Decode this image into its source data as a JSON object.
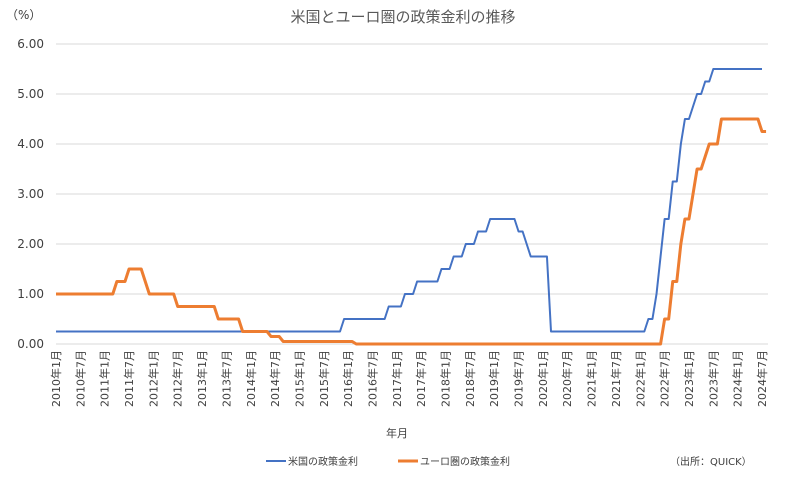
{
  "chart_data": {
    "type": "line",
    "title": "米国とユーロ圏の政策金利の推移",
    "y_unit": "（%）",
    "x_label": "年月",
    "source": "（出所：QUICK）",
    "categories": [
      "2010年1月",
      null,
      null,
      null,
      null,
      null,
      "2010年7月",
      null,
      null,
      null,
      null,
      null,
      "2011年1月",
      null,
      null,
      null,
      null,
      null,
      "2011年7月",
      null,
      null,
      null,
      null,
      null,
      "2012年1月",
      null,
      null,
      null,
      null,
      null,
      "2012年7月",
      null,
      null,
      null,
      null,
      null,
      "2013年1月",
      null,
      null,
      null,
      null,
      null,
      "2013年7月",
      null,
      null,
      null,
      null,
      null,
      "2014年1月",
      null,
      null,
      null,
      null,
      null,
      "2014年7月",
      null,
      null,
      null,
      null,
      null,
      "2015年1月",
      null,
      null,
      null,
      null,
      null,
      "2015年7月",
      null,
      null,
      null,
      null,
      null,
      "2016年1月",
      null,
      null,
      null,
      null,
      null,
      "2016年7月",
      null,
      null,
      null,
      null,
      null,
      "2017年1月",
      null,
      null,
      null,
      null,
      null,
      "2017年7月",
      null,
      null,
      null,
      null,
      null,
      "2018年1月",
      null,
      null,
      null,
      null,
      null,
      "2018年7月",
      null,
      null,
      null,
      null,
      null,
      "2019年1月",
      null,
      null,
      null,
      null,
      null,
      "2019年7月",
      null,
      null,
      null,
      null,
      null,
      "2020年1月",
      null,
      null,
      null,
      null,
      null,
      "2020年7月",
      null,
      null,
      null,
      null,
      null,
      "2021年1月",
      null,
      null,
      null,
      null,
      null,
      "2021年7月",
      null,
      null,
      null,
      null,
      null,
      "2022年1月",
      null,
      null,
      null,
      null,
      null,
      "2022年7月",
      null,
      null,
      null,
      null,
      null,
      "2023年1月",
      null,
      null,
      null,
      null,
      null,
      "2023年7月",
      null,
      null,
      null,
      null,
      null,
      "2024年1月",
      null,
      null,
      null,
      null,
      null,
      "2024年7月",
      null
    ],
    "series": [
      {
        "name": "米国の政策金利",
        "color": "#4472c4",
        "values": [
          0.25,
          0.25,
          0.25,
          0.25,
          0.25,
          0.25,
          0.25,
          0.25,
          0.25,
          0.25,
          0.25,
          0.25,
          0.25,
          0.25,
          0.25,
          0.25,
          0.25,
          0.25,
          0.25,
          0.25,
          0.25,
          0.25,
          0.25,
          0.25,
          0.25,
          0.25,
          0.25,
          0.25,
          0.25,
          0.25,
          0.25,
          0.25,
          0.25,
          0.25,
          0.25,
          0.25,
          0.25,
          0.25,
          0.25,
          0.25,
          0.25,
          0.25,
          0.25,
          0.25,
          0.25,
          0.25,
          0.25,
          0.25,
          0.25,
          0.25,
          0.25,
          0.25,
          0.25,
          0.25,
          0.25,
          0.25,
          0.25,
          0.25,
          0.25,
          0.25,
          0.25,
          0.25,
          0.25,
          0.25,
          0.25,
          0.25,
          0.25,
          0.25,
          0.25,
          0.25,
          0.25,
          0.5,
          0.5,
          0.5,
          0.5,
          0.5,
          0.5,
          0.5,
          0.5,
          0.5,
          0.5,
          0.5,
          0.75,
          0.75,
          0.75,
          0.75,
          1.0,
          1.0,
          1.0,
          1.25,
          1.25,
          1.25,
          1.25,
          1.25,
          1.25,
          1.5,
          1.5,
          1.5,
          1.75,
          1.75,
          1.75,
          2.0,
          2.0,
          2.0,
          2.25,
          2.25,
          2.25,
          2.5,
          2.5,
          2.5,
          2.5,
          2.5,
          2.5,
          2.5,
          2.25,
          2.25,
          2.0,
          1.75,
          1.75,
          1.75,
          1.75,
          1.75,
          0.25,
          0.25,
          0.25,
          0.25,
          0.25,
          0.25,
          0.25,
          0.25,
          0.25,
          0.25,
          0.25,
          0.25,
          0.25,
          0.25,
          0.25,
          0.25,
          0.25,
          0.25,
          0.25,
          0.25,
          0.25,
          0.25,
          0.25,
          0.25,
          0.5,
          0.5,
          1.0,
          1.75,
          2.5,
          2.5,
          3.25,
          3.25,
          4.0,
          4.5,
          4.5,
          4.75,
          5.0,
          5.0,
          5.25,
          5.25,
          5.5,
          5.5,
          5.5,
          5.5,
          5.5,
          5.5,
          5.5,
          5.5,
          5.5,
          5.5,
          5.5,
          5.5,
          5.5,
          null
        ]
      },
      {
        "name": "ユーロ圏の政策金利",
        "color": "#ed7d31",
        "values": [
          1.0,
          1.0,
          1.0,
          1.0,
          1.0,
          1.0,
          1.0,
          1.0,
          1.0,
          1.0,
          1.0,
          1.0,
          1.0,
          1.0,
          1.0,
          1.25,
          1.25,
          1.25,
          1.5,
          1.5,
          1.5,
          1.5,
          1.25,
          1.0,
          1.0,
          1.0,
          1.0,
          1.0,
          1.0,
          1.0,
          0.75,
          0.75,
          0.75,
          0.75,
          0.75,
          0.75,
          0.75,
          0.75,
          0.75,
          0.75,
          0.5,
          0.5,
          0.5,
          0.5,
          0.5,
          0.5,
          0.25,
          0.25,
          0.25,
          0.25,
          0.25,
          0.25,
          0.25,
          0.15,
          0.15,
          0.15,
          0.05,
          0.05,
          0.05,
          0.05,
          0.05,
          0.05,
          0.05,
          0.05,
          0.05,
          0.05,
          0.05,
          0.05,
          0.05,
          0.05,
          0.05,
          0.05,
          0.05,
          0.05,
          0,
          0,
          0,
          0,
          0,
          0,
          0,
          0,
          0,
          0,
          0,
          0,
          0,
          0,
          0,
          0,
          0,
          0,
          0,
          0,
          0,
          0,
          0,
          0,
          0,
          0,
          0,
          0,
          0,
          0,
          0,
          0,
          0,
          0,
          0,
          0,
          0,
          0,
          0,
          0,
          0,
          0,
          0,
          0,
          0,
          0,
          0,
          0,
          0,
          0,
          0,
          0,
          0,
          0,
          0,
          0,
          0,
          0,
          0,
          0,
          0,
          0,
          0,
          0,
          0,
          0,
          0,
          0,
          0,
          0,
          0,
          0,
          0,
          0,
          0,
          0,
          0.5,
          0.5,
          1.25,
          1.25,
          2.0,
          2.5,
          2.5,
          3.0,
          3.5,
          3.5,
          3.75,
          4.0,
          4.0,
          4.0,
          4.5,
          4.5,
          4.5,
          4.5,
          4.5,
          4.5,
          4.5,
          4.5,
          4.5,
          4.5,
          4.25,
          4.25
        ]
      }
    ],
    "ylim": [
      0,
      6
    ],
    "yticks": [
      {
        "value": 0,
        "label": "0.00"
      },
      {
        "value": 1,
        "label": "1.00"
      },
      {
        "value": 2,
        "label": "2.00"
      },
      {
        "value": 3,
        "label": "3.00"
      },
      {
        "value": 4,
        "label": "4.00"
      },
      {
        "value": 5,
        "label": "5.00"
      },
      {
        "value": 6,
        "label": "6.00"
      }
    ],
    "grid": true
  }
}
